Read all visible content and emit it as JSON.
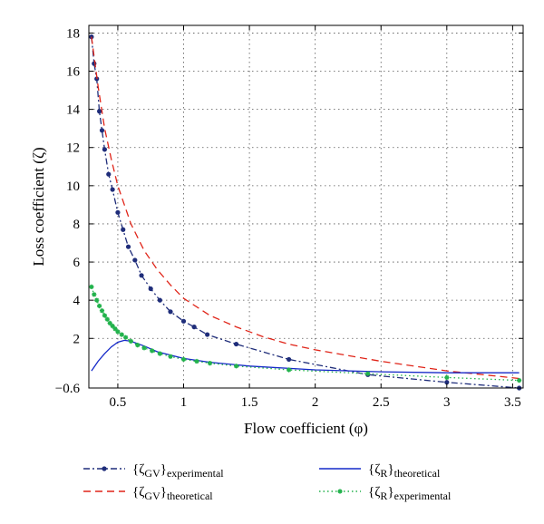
{
  "chart_data": {
    "type": "line",
    "xlabel": "Flow coefficient (φ)",
    "ylabel": "Loss coefficient (ζ)",
    "xlim": [
      0.28,
      3.58
    ],
    "ylim": [
      -0.6,
      18.4
    ],
    "xticks": [
      0.5,
      1,
      1.5,
      2,
      2.5,
      3,
      3.5
    ],
    "xtick_labels": [
      "0.5",
      "1",
      "1.5",
      "2",
      "2.5",
      "3",
      "3.5"
    ],
    "yticks": [
      -0.6,
      2,
      4,
      6,
      8,
      10,
      12,
      14,
      16,
      18
    ],
    "ytick_labels": [
      "−0.6",
      "2",
      "4",
      "6",
      "8",
      "10",
      "12",
      "14",
      "16",
      "18"
    ],
    "grid": true,
    "legend_position": "bottom, below plot",
    "series": [
      {
        "name": "{ζGV}experimental",
        "label_main": "{ζ",
        "label_sub": "GV",
        "label_close": "}",
        "label_tail": "experimental",
        "color": "#1f2d7a",
        "style": "dashdot",
        "marker": "circle",
        "x": [
          0.3,
          0.32,
          0.34,
          0.36,
          0.38,
          0.4,
          0.43,
          0.46,
          0.5,
          0.54,
          0.58,
          0.63,
          0.68,
          0.75,
          0.82,
          0.9,
          1.0,
          1.08,
          1.18,
          1.4,
          1.8,
          2.4,
          3.0,
          3.55
        ],
        "y": [
          17.8,
          16.4,
          15.6,
          13.9,
          12.9,
          11.9,
          10.6,
          9.8,
          8.6,
          7.7,
          6.8,
          6.1,
          5.3,
          4.6,
          4.0,
          3.4,
          2.9,
          2.6,
          2.2,
          1.7,
          0.9,
          0.1,
          -0.3,
          -0.6
        ]
      },
      {
        "name": "{ζGV}theoretical",
        "label_main": "{ζ",
        "label_sub": "GV",
        "label_close": "}",
        "label_tail": "theoretical",
        "color": "#e02418",
        "style": "dashed",
        "marker": "none",
        "x": [
          0.3,
          0.35,
          0.4,
          0.45,
          0.5,
          0.6,
          0.7,
          0.8,
          0.9,
          1.0,
          1.2,
          1.4,
          1.6,
          1.8,
          2.0,
          2.5,
          3.0,
          3.55
        ],
        "y": [
          17.8,
          15.2,
          13.0,
          11.4,
          10.0,
          8.0,
          6.6,
          5.6,
          4.8,
          4.1,
          3.2,
          2.6,
          2.1,
          1.7,
          1.4,
          0.8,
          0.3,
          -0.1
        ]
      },
      {
        "name": "{ζR}theoretical",
        "label_main": "{ζ",
        "label_sub": "R",
        "label_close": "}",
        "label_tail": "theoretical",
        "color": "#1428c8",
        "style": "solid",
        "marker": "none",
        "x": [
          0.3,
          0.35,
          0.4,
          0.45,
          0.5,
          0.55,
          0.6,
          0.7,
          0.8,
          1.0,
          1.2,
          1.5,
          2.0,
          2.5,
          3.0,
          3.55
        ],
        "y": [
          0.3,
          0.8,
          1.2,
          1.55,
          1.8,
          1.9,
          1.85,
          1.6,
          1.3,
          0.95,
          0.75,
          0.55,
          0.35,
          0.25,
          0.2,
          0.2
        ]
      },
      {
        "name": "{ζR}experimental",
        "label_main": "{ζ",
        "label_sub": "R",
        "label_close": "}",
        "label_tail": "experimental",
        "color": "#22b24c",
        "style": "dotted",
        "marker": "star",
        "x": [
          0.3,
          0.32,
          0.34,
          0.36,
          0.38,
          0.4,
          0.42,
          0.44,
          0.46,
          0.48,
          0.5,
          0.53,
          0.56,
          0.6,
          0.65,
          0.7,
          0.76,
          0.82,
          0.9,
          1.0,
          1.1,
          1.2,
          1.4,
          1.8,
          2.4,
          3.0,
          3.55
        ],
        "y": [
          4.7,
          4.3,
          4.0,
          3.7,
          3.45,
          3.2,
          3.0,
          2.8,
          2.65,
          2.5,
          2.35,
          2.2,
          2.05,
          1.85,
          1.65,
          1.5,
          1.35,
          1.2,
          1.05,
          0.9,
          0.8,
          0.7,
          0.55,
          0.35,
          0.15,
          -0.05,
          -0.2
        ]
      }
    ]
  }
}
